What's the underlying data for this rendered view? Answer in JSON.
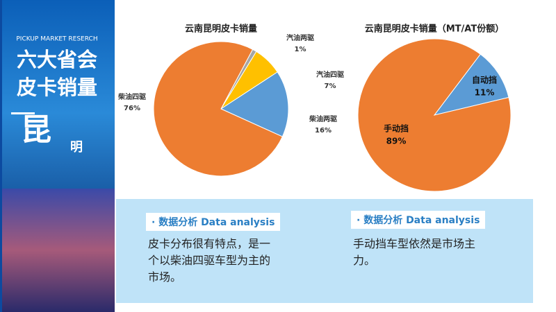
{
  "sidebar": {
    "subtitle": "PICKUP MARKET RESERCH",
    "title_lines": [
      "六大省会",
      "皮卡销量"
    ],
    "city_big": "昆",
    "city_small": "明"
  },
  "chart_data": [
    {
      "type": "pie",
      "title": "云南昆明皮卡销量",
      "categories": [
        "汽油两驱",
        "汽油四驱",
        "柴油两驱",
        "柴油四驱"
      ],
      "values": [
        1,
        7,
        16,
        76
      ],
      "value_labels": [
        "1%",
        "7%",
        "16%",
        "76%"
      ],
      "colors": [
        "#a5a5a5",
        "#ffc000",
        "#5b9bd5",
        "#ed7d31"
      ]
    },
    {
      "type": "pie",
      "title": "云南昆明皮卡销量（MT/AT份额）",
      "categories": [
        "自动挡",
        "手动挡"
      ],
      "values": [
        11,
        89
      ],
      "value_labels": [
        "11%",
        "89%"
      ],
      "colors": [
        "#5b9bd5",
        "#ed7d31"
      ]
    }
  ],
  "analysis": [
    {
      "heading": "· 数据分析 Data analysis",
      "text": "皮卡分布很有特点，是一个以柴油四驱车型为主的市场。"
    },
    {
      "heading": "· 数据分析 Data analysis",
      "text": "手动挡车型依然是市场主力。"
    }
  ]
}
